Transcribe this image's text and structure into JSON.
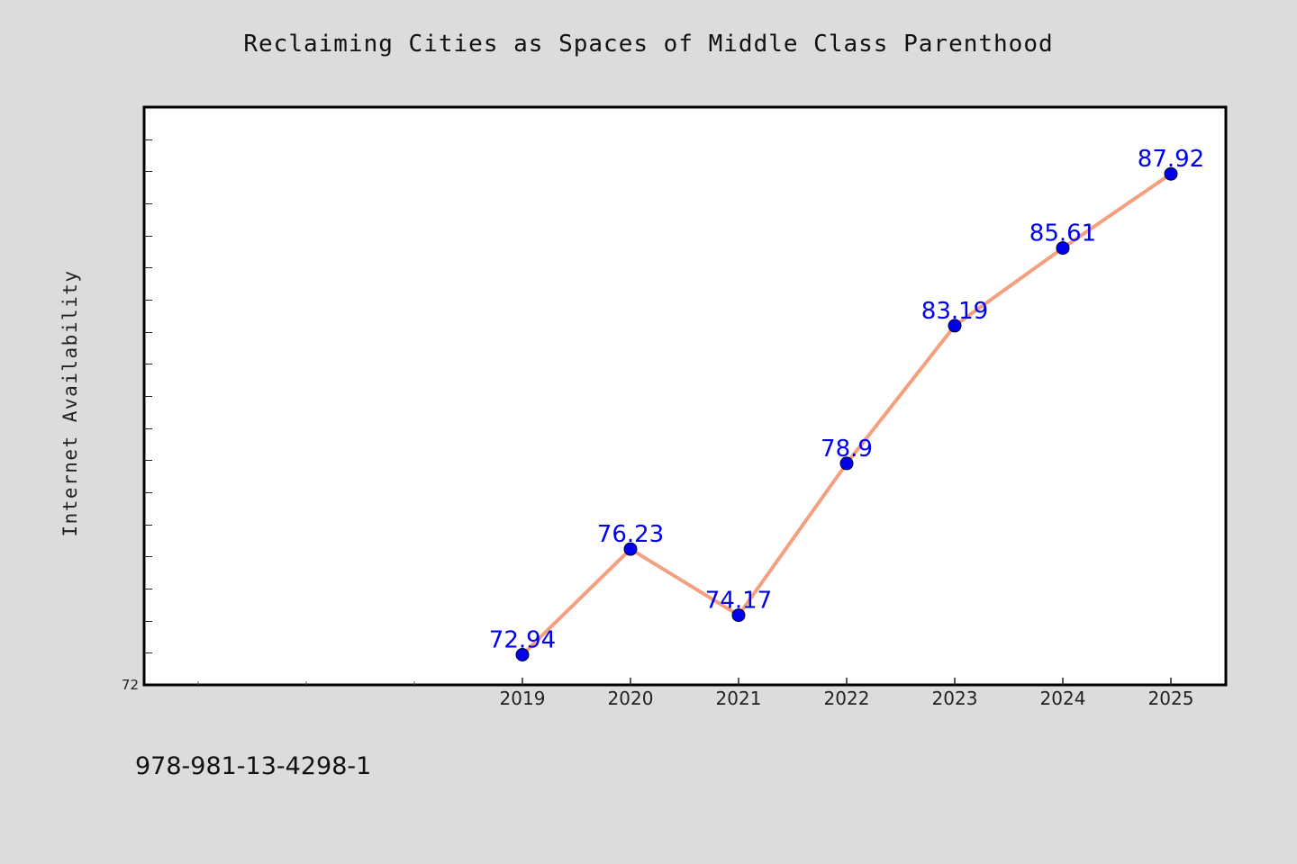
{
  "chart_data": {
    "type": "line",
    "title": "Reclaiming Cities as Spaces of Middle Class Parenthood",
    "ylabel": "Internet Availability",
    "xlabel": "",
    "x": [
      "2019",
      "2020",
      "2021",
      "2022",
      "2023",
      "2024",
      "2025"
    ],
    "series": [
      {
        "values": [
          72.94,
          76.23,
          74.17,
          78.9,
          83.19,
          85.61,
          87.92
        ]
      }
    ],
    "y_tick_labels": [
      "72"
    ],
    "ylim": [
      72,
      90
    ],
    "grid": false,
    "colors": {
      "line": "#f4a07f",
      "marker": "#0000ee",
      "data_label": "#0000ee",
      "plot_background": "#ffffff",
      "page_background": "#dcdcdc"
    }
  },
  "footer": {
    "identifier": "978-981-13-4298-1"
  }
}
